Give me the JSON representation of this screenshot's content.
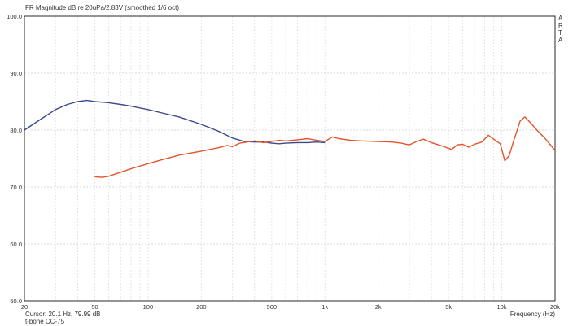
{
  "chart_data": {
    "type": "line",
    "title": "FR Magnitude dB re 20uPa/2.83V (smoothed 1/6 oct)",
    "side_label": "ARTA",
    "xlabel": "Frequency (Hz)",
    "ylabel": "",
    "x_scale": "log",
    "xlim": [
      20,
      20000
    ],
    "ylim": [
      50,
      100
    ],
    "x_ticks": [
      {
        "value": 20,
        "label": "20"
      },
      {
        "value": 50,
        "label": "50"
      },
      {
        "value": 100,
        "label": "100"
      },
      {
        "value": 200,
        "label": "200"
      },
      {
        "value": 500,
        "label": "500"
      },
      {
        "value": 1000,
        "label": "1k"
      },
      {
        "value": 2000,
        "label": "2k"
      },
      {
        "value": 5000,
        "label": "5k"
      },
      {
        "value": 10000,
        "label": "10k"
      },
      {
        "value": 20000,
        "label": "20k"
      }
    ],
    "y_ticks": [
      {
        "value": 50,
        "label": "50.0"
      },
      {
        "value": 60,
        "label": "60.0"
      },
      {
        "value": 70,
        "label": "70.0"
      },
      {
        "value": 80,
        "label": "80.0"
      },
      {
        "value": 90,
        "label": "90.0"
      },
      {
        "value": 100,
        "label": "100.0"
      }
    ],
    "grid": true,
    "cursor_readout": "Cursor: 20.1 Hz, 79.99 dB",
    "curve_label": "t-bone CC-75",
    "series": [
      {
        "color": "#3d4a8a",
        "points": [
          [
            20,
            80.0
          ],
          [
            25,
            82.0
          ],
          [
            30,
            83.6
          ],
          [
            35,
            84.5
          ],
          [
            40,
            85.0
          ],
          [
            45,
            85.2
          ],
          [
            50,
            85.0
          ],
          [
            60,
            84.8
          ],
          [
            70,
            84.5
          ],
          [
            80,
            84.2
          ],
          [
            100,
            83.6
          ],
          [
            120,
            83.0
          ],
          [
            150,
            82.3
          ],
          [
            200,
            81.0
          ],
          [
            250,
            79.8
          ],
          [
            300,
            78.6
          ],
          [
            350,
            78.0
          ],
          [
            400,
            77.9
          ],
          [
            450,
            77.9
          ],
          [
            500,
            77.7
          ],
          [
            550,
            77.6
          ],
          [
            600,
            77.7
          ],
          [
            700,
            77.8
          ],
          [
            800,
            77.8
          ],
          [
            900,
            77.9
          ],
          [
            1000,
            77.8
          ]
        ]
      },
      {
        "color": "#e2542b",
        "points": [
          [
            50,
            71.8
          ],
          [
            55,
            71.7
          ],
          [
            60,
            71.9
          ],
          [
            70,
            72.6
          ],
          [
            80,
            73.2
          ],
          [
            100,
            74.1
          ],
          [
            120,
            74.8
          ],
          [
            150,
            75.6
          ],
          [
            200,
            76.3
          ],
          [
            250,
            76.9
          ],
          [
            280,
            77.3
          ],
          [
            300,
            77.1
          ],
          [
            330,
            77.7
          ],
          [
            400,
            78.1
          ],
          [
            450,
            77.8
          ],
          [
            500,
            78.0
          ],
          [
            550,
            78.2
          ],
          [
            600,
            78.1
          ],
          [
            700,
            78.3
          ],
          [
            800,
            78.5
          ],
          [
            900,
            78.2
          ],
          [
            1000,
            78.0
          ],
          [
            1100,
            78.8
          ],
          [
            1200,
            78.5
          ],
          [
            1400,
            78.2
          ],
          [
            1600,
            78.1
          ],
          [
            2000,
            78.0
          ],
          [
            2400,
            77.9
          ],
          [
            2700,
            77.7
          ],
          [
            3000,
            77.4
          ],
          [
            3300,
            78.0
          ],
          [
            3600,
            78.4
          ],
          [
            4000,
            77.8
          ],
          [
            4400,
            77.4
          ],
          [
            4800,
            77.0
          ],
          [
            5200,
            76.6
          ],
          [
            5600,
            77.4
          ],
          [
            6000,
            77.5
          ],
          [
            6500,
            77.0
          ],
          [
            7000,
            77.5
          ],
          [
            7700,
            77.9
          ],
          [
            8400,
            79.1
          ],
          [
            9000,
            78.4
          ],
          [
            9800,
            77.6
          ],
          [
            10400,
            74.6
          ],
          [
            11000,
            75.5
          ],
          [
            11700,
            78.2
          ],
          [
            12700,
            81.6
          ],
          [
            13500,
            82.3
          ],
          [
            14500,
            81.3
          ],
          [
            16000,
            79.8
          ],
          [
            17500,
            78.6
          ],
          [
            20000,
            76.4
          ]
        ]
      }
    ]
  }
}
